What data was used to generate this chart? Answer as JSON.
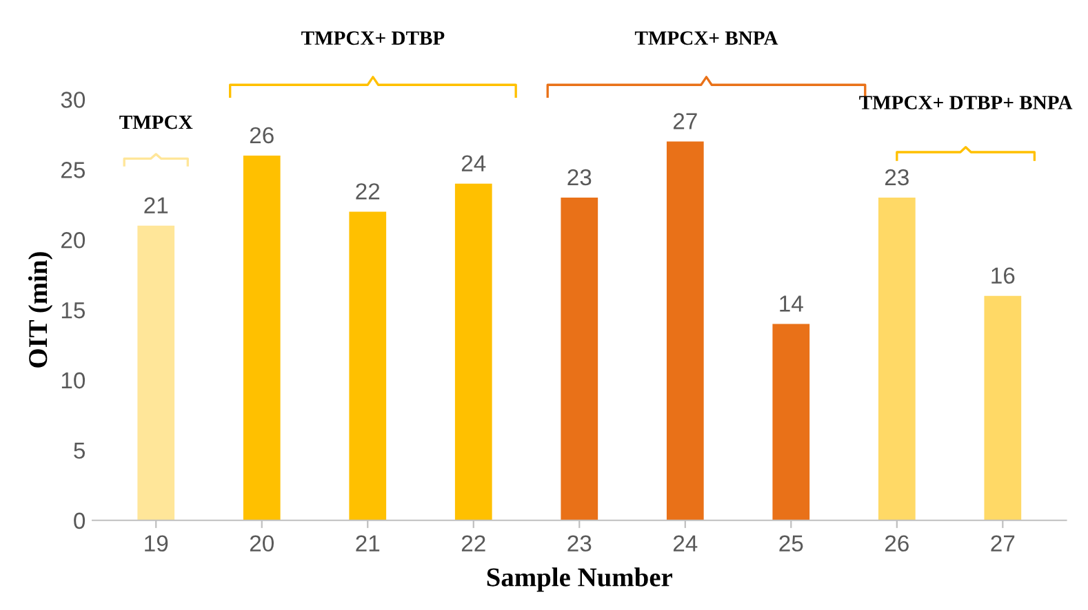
{
  "chart_data": {
    "type": "bar",
    "xlabel": "Sample Number",
    "ylabel": "OIT (min)",
    "categories": [
      "19",
      "20",
      "21",
      "22",
      "23",
      "24",
      "25",
      "26",
      "27"
    ],
    "values": [
      21,
      26,
      22,
      24,
      23,
      27,
      14,
      23,
      16
    ],
    "colors": [
      "#ffe699",
      "#ffc000",
      "#ffc000",
      "#ffc000",
      "#e97118",
      "#e97118",
      "#e97118",
      "#ffd966",
      "#ffd966"
    ],
    "ylim": [
      0,
      30
    ],
    "yticks": [
      0,
      5,
      10,
      15,
      20,
      25,
      30
    ],
    "grid": false,
    "data_labels": true,
    "annotations": [
      "TMPCX",
      "TMPCX+ DTBP",
      "TMPCX+ BNPA",
      "TMPCX+ DTBP+ BNPA"
    ]
  }
}
